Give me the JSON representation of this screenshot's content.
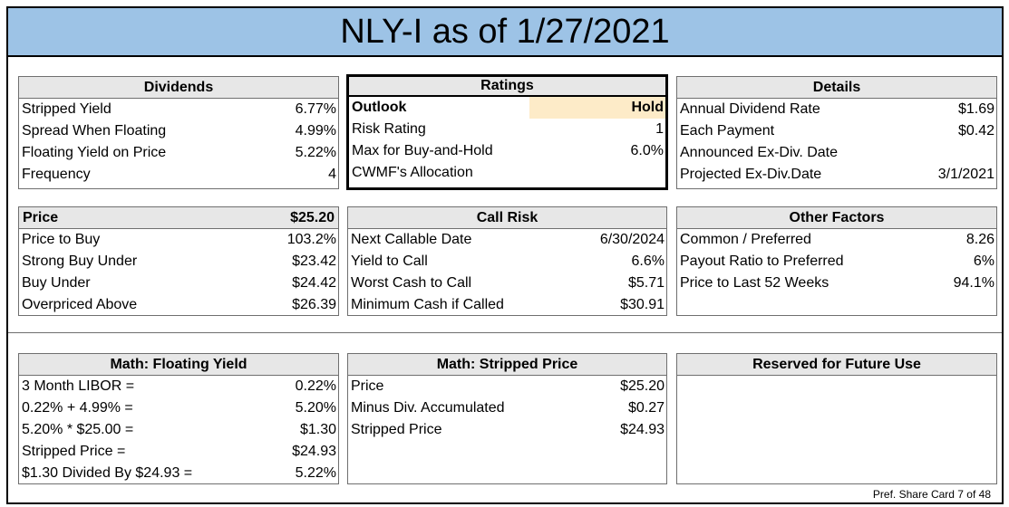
{
  "title": "NLY-I as of 1/27/2021",
  "footer": "Pref. Share Card 7 of 48",
  "dividends": {
    "header": "Dividends",
    "rows": [
      {
        "label": "Stripped Yield",
        "value": "6.77%"
      },
      {
        "label": "Spread When Floating",
        "value": "4.99%"
      },
      {
        "label": "Floating Yield on Price",
        "value": "5.22%"
      },
      {
        "label": "Frequency",
        "value": "4"
      }
    ]
  },
  "ratings": {
    "header": "Ratings",
    "rows": [
      {
        "label": "Outlook",
        "value": "Hold"
      },
      {
        "label": "Risk Rating",
        "value": "1"
      },
      {
        "label": "Max for Buy-and-Hold",
        "value": "6.0%"
      },
      {
        "label": "CWMF's Allocation",
        "value": ""
      }
    ]
  },
  "details": {
    "header": "Details",
    "rows": [
      {
        "label": "Annual Dividend Rate",
        "value": "$1.69"
      },
      {
        "label": "Each Payment",
        "value": "$0.42"
      },
      {
        "label": "Announced Ex-Div. Date",
        "value": ""
      },
      {
        "label": "Projected Ex-Div.Date",
        "value": "3/1/2021"
      }
    ]
  },
  "price": {
    "header": "Price",
    "header_value": "$25.20",
    "rows": [
      {
        "label": "Price to Buy",
        "value": "103.2%"
      },
      {
        "label": "Strong Buy Under",
        "value": "$23.42"
      },
      {
        "label": "Buy Under",
        "value": "$24.42"
      },
      {
        "label": "Overpriced Above",
        "value": "$26.39"
      }
    ]
  },
  "call_risk": {
    "header": "Call Risk",
    "rows": [
      {
        "label": "Next Callable Date",
        "value": "6/30/2024"
      },
      {
        "label": "Yield to Call",
        "value": "6.6%"
      },
      {
        "label": "Worst Cash to Call",
        "value": "$5.71"
      },
      {
        "label": "Minimum Cash if Called",
        "value": "$30.91"
      }
    ]
  },
  "other_factors": {
    "header": "Other Factors",
    "rows": [
      {
        "label": "Common / Preferred",
        "value": "8.26"
      },
      {
        "label": "Payout Ratio to Preferred",
        "value": "6%"
      },
      {
        "label": "Price to Last 52 Weeks",
        "value": "94.1%"
      }
    ]
  },
  "math_floating": {
    "header": "Math: Floating Yield",
    "rows": [
      {
        "label": "3 Month LIBOR =",
        "value": "0.22%"
      },
      {
        "label": "0.22% + 4.99% =",
        "value": "5.20%"
      },
      {
        "label": "5.20% * $25.00 =",
        "value": "$1.30"
      },
      {
        "label": "Stripped Price =",
        "value": "$24.93"
      },
      {
        "label": "$1.30 Divided By $24.93 =",
        "value": "5.22%"
      }
    ]
  },
  "math_stripped": {
    "header": "Math: Stripped Price",
    "rows": [
      {
        "label": "Price",
        "value": "$25.20"
      },
      {
        "label": "Minus Div. Accumulated",
        "value": "$0.27"
      },
      {
        "label": "Stripped Price",
        "value": "$24.93"
      }
    ]
  },
  "reserved": {
    "header": "Reserved for Future Use"
  }
}
